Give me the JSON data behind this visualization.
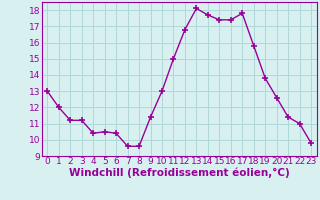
{
  "x": [
    0,
    1,
    2,
    3,
    4,
    5,
    6,
    7,
    8,
    9,
    10,
    11,
    12,
    13,
    14,
    15,
    16,
    17,
    18,
    19,
    20,
    21,
    22,
    23
  ],
  "y": [
    13,
    12,
    11.2,
    11.2,
    10.4,
    10.5,
    10.4,
    9.6,
    9.6,
    11.4,
    13.0,
    15.0,
    16.8,
    18.1,
    17.7,
    17.4,
    17.4,
    17.8,
    15.8,
    13.8,
    12.6,
    11.4,
    11.0,
    9.8
  ],
  "line_color": "#990099",
  "marker": "+",
  "marker_size": 5,
  "marker_linewidth": 1.2,
  "bg_color": "#d8f0f0",
  "grid_color": "#b0d8d8",
  "xlabel": "Windchill (Refroidissement éolien,°C)",
  "xlim": [
    -0.5,
    23.5
  ],
  "ylim": [
    9,
    18.5
  ],
  "yticks": [
    9,
    10,
    11,
    12,
    13,
    14,
    15,
    16,
    17,
    18
  ],
  "xticks": [
    0,
    1,
    2,
    3,
    4,
    5,
    6,
    7,
    8,
    9,
    10,
    11,
    12,
    13,
    14,
    15,
    16,
    17,
    18,
    19,
    20,
    21,
    22,
    23
  ],
  "tick_label_color": "#990099",
  "tick_label_size": 6.5,
  "xlabel_size": 7.5,
  "xlabel_color": "#990099",
  "line_width": 1.0,
  "spine_color": "#990099"
}
